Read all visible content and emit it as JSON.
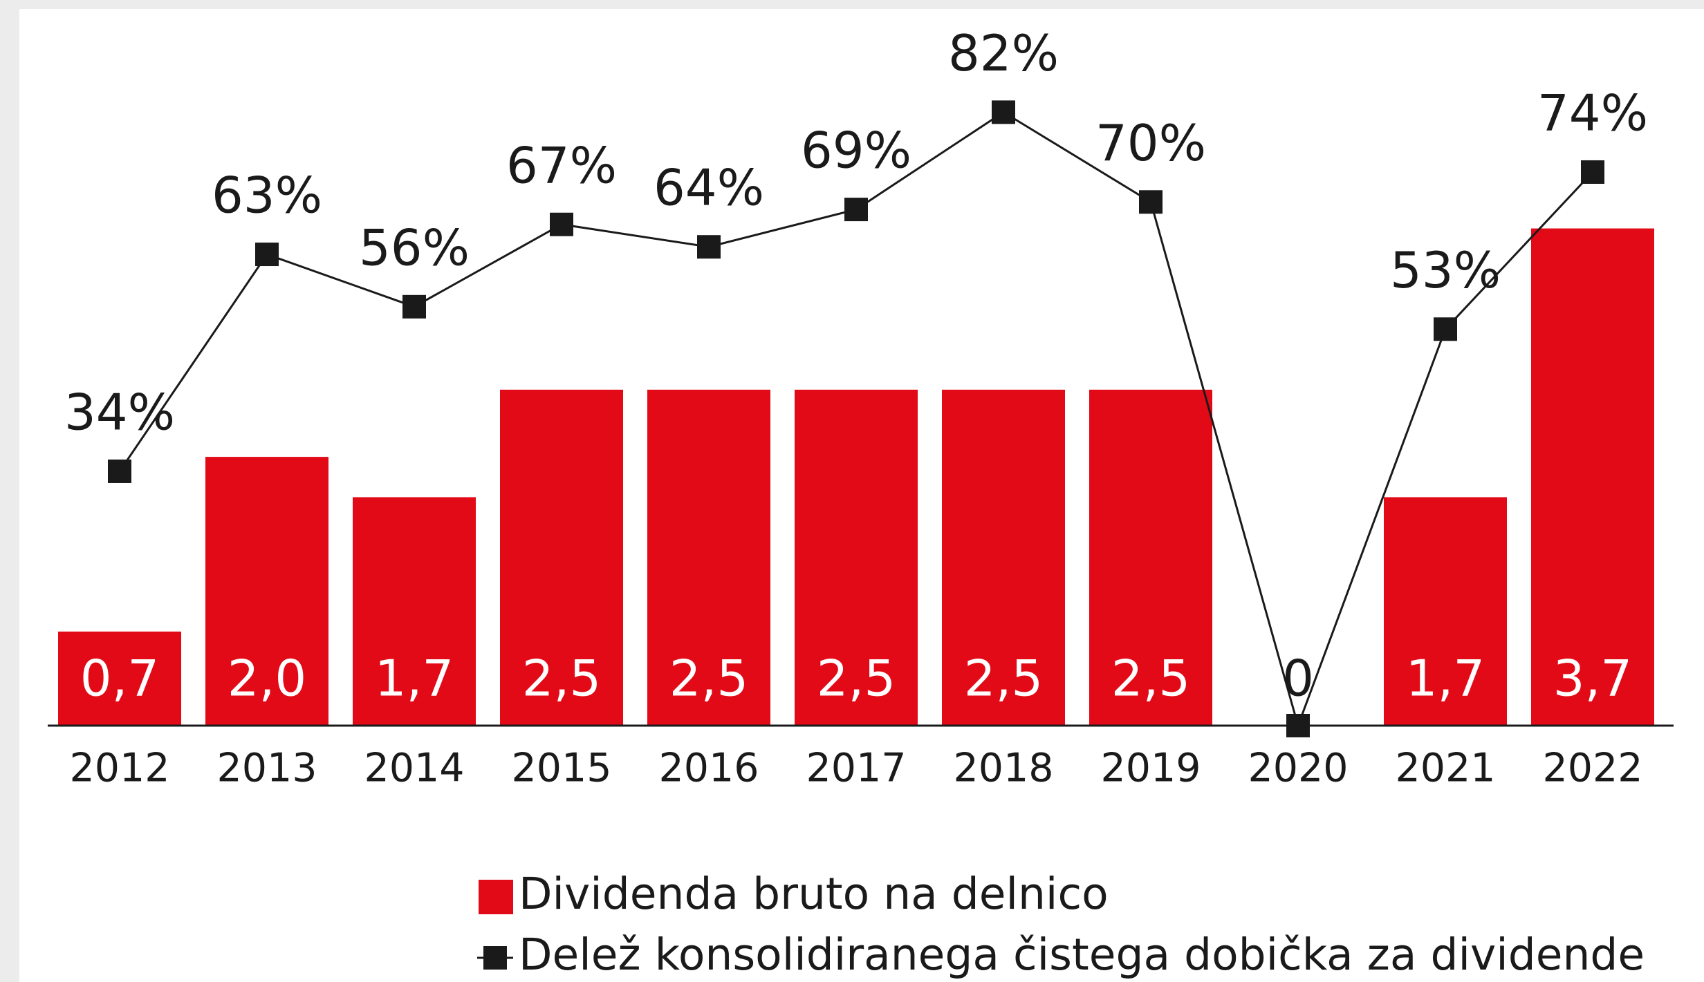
{
  "chart_data": {
    "type": "bar",
    "categories": [
      "2012",
      "2013",
      "2014",
      "2015",
      "2016",
      "2017",
      "2018",
      "2019",
      "2020",
      "2021",
      "2022"
    ],
    "series": [
      {
        "name": "Dividenda bruto na delnico",
        "color": "#e30a18",
        "values": [
          0.7,
          2.0,
          1.7,
          2.5,
          2.5,
          2.5,
          2.5,
          2.5,
          0,
          1.7,
          3.7
        ],
        "value_labels": [
          "0,7",
          "2,0",
          "1,7",
          "2,5",
          "2,5",
          "2,5",
          "2,5",
          "2,5",
          "0",
          "1,7",
          "3,7"
        ]
      },
      {
        "name": "Delež konsolidiranega čistega dobička za dividende",
        "type": "line",
        "axis": "y2",
        "color": "#1a1a1a",
        "values": [
          34,
          63,
          56,
          67,
          64,
          69,
          82,
          70,
          0,
          53,
          74
        ],
        "value_labels": [
          "34%",
          "63%",
          "56%",
          "67%",
          "64%",
          "69%",
          "82%",
          "70%",
          null,
          "53%",
          "74%"
        ]
      }
    ],
    "ylim": [
      0,
      5.4
    ],
    "y2lim": [
      0,
      97
    ],
    "grid": false
  }
}
